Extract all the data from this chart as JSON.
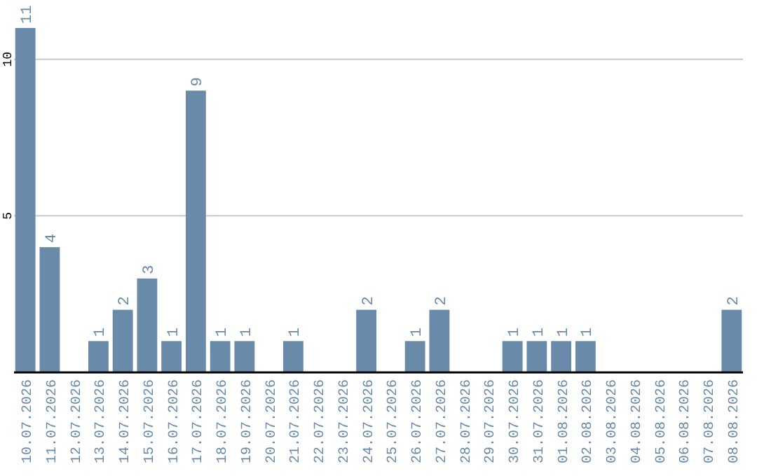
{
  "chart_data": {
    "type": "bar",
    "categories": [
      "10.07.2026",
      "11.07.2026",
      "12.07.2026",
      "13.07.2026",
      "14.07.2026",
      "15.07.2026",
      "16.07.2026",
      "17.07.2026",
      "18.07.2026",
      "19.07.2026",
      "20.07.2026",
      "21.07.2026",
      "22.07.2026",
      "23.07.2026",
      "24.07.2026",
      "25.07.2026",
      "26.07.2026",
      "27.07.2026",
      "28.07.2026",
      "29.07.2026",
      "30.07.2026",
      "31.07.2026",
      "01.08.2026",
      "02.08.2026",
      "03.08.2026",
      "04.08.2026",
      "05.08.2026",
      "06.08.2026",
      "07.08.2026",
      "08.08.2026"
    ],
    "values": [
      11,
      4,
      0,
      1,
      2,
      3,
      1,
      9,
      1,
      1,
      0,
      1,
      0,
      0,
      2,
      0,
      1,
      2,
      0,
      0,
      1,
      1,
      1,
      1,
      0,
      0,
      0,
      0,
      0,
      2
    ],
    "value_labels": [
      "11",
      "4",
      null,
      "1",
      "2",
      "3",
      "1",
      "9",
      "1",
      "1",
      null,
      "1",
      null,
      null,
      "2",
      null,
      "1",
      "2",
      null,
      null,
      "1",
      "1",
      "1",
      "1",
      null,
      null,
      null,
      null,
      null,
      "2"
    ],
    "color": "#6a8aaa",
    "ylim": [
      0,
      11
    ],
    "yticks": [
      5,
      10
    ],
    "grid": "y"
  }
}
